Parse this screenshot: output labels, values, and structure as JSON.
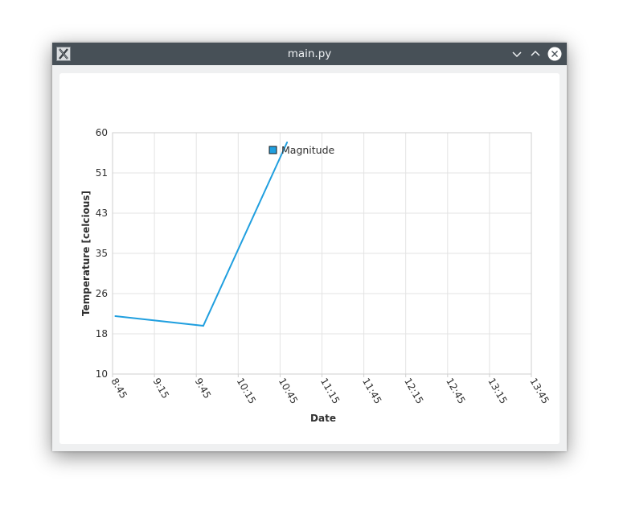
{
  "window": {
    "title": "main.py",
    "app_icon": "x-app-icon",
    "controls": [
      "minimize-icon",
      "maximize-icon",
      "close-icon"
    ]
  },
  "chart_data": {
    "type": "line",
    "title": "",
    "xlabel": "Date",
    "ylabel": "Temperature [celcious]",
    "legend": {
      "placement": "top-center",
      "entries": [
        "Magnitude"
      ]
    },
    "grid": true,
    "x_tick_labels": [
      "8:45",
      "9:15",
      "9:45",
      "10:15",
      "10:45",
      "11:15",
      "11:45",
      "12:15",
      "12:45",
      "13:15",
      "13:45"
    ],
    "y_tick_labels": [
      "10",
      "18",
      "26",
      "35",
      "43",
      "51",
      "60"
    ],
    "xlim": [
      "8:45",
      "13:45"
    ],
    "ylim": [
      10,
      60
    ],
    "series": [
      {
        "name": "Magnitude",
        "color": "#209fdf",
        "points": [
          {
            "x": "8:47",
            "y": 22
          },
          {
            "x": "9:50",
            "y": 20
          },
          {
            "x": "10:50",
            "y": 58
          }
        ]
      }
    ]
  }
}
